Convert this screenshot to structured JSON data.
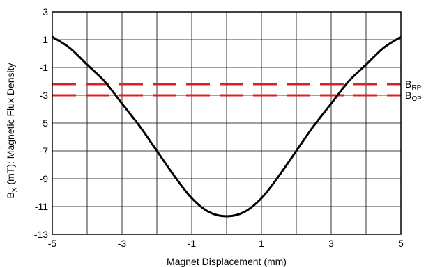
{
  "chart_data": {
    "type": "line",
    "title": "",
    "xlabel": "Magnet Displacement (mm)",
    "ylabel": "(mT): Magnetic Flux Density",
    "ylabel_symbol": "B",
    "ylabel_symbol_sub": "X",
    "xlim": [
      -5,
      5
    ],
    "ylim": [
      -13,
      3
    ],
    "x_ticks": [
      -5,
      -3,
      -1,
      1,
      3,
      5
    ],
    "y_ticks": [
      3,
      1,
      -1,
      -3,
      -5,
      -7,
      -9,
      -11,
      -13
    ],
    "x_grid": [
      -5,
      -4,
      -3,
      -2,
      -1,
      0,
      1,
      2,
      3,
      4,
      5
    ],
    "y_grid": [
      3,
      1,
      -1,
      -3,
      -5,
      -7,
      -9,
      -11,
      -13
    ],
    "grid": true,
    "series": [
      {
        "color": "#000000",
        "x": [
          -5.0,
          -4.5,
          -4.0,
          -3.5,
          -3.0,
          -2.5,
          -2.0,
          -1.5,
          -1.0,
          -0.5,
          0.0,
          0.5,
          1.0,
          1.5,
          2.0,
          2.5,
          3.0,
          3.5,
          4.0,
          4.5,
          5.0
        ],
        "y": [
          1.2,
          0.4,
          -0.8,
          -2.0,
          -3.6,
          -5.2,
          -7.0,
          -8.8,
          -10.4,
          -11.4,
          -11.7,
          -11.4,
          -10.4,
          -8.8,
          -7.0,
          -5.2,
          -3.6,
          -2.0,
          -0.8,
          0.4,
          1.2
        ]
      }
    ],
    "reference_lines": [
      {
        "value": -2.2,
        "label_main": "B",
        "label_sub": "RP",
        "color": "#e02020"
      },
      {
        "value": -3.0,
        "label_main": "B",
        "label_sub": "OP",
        "color": "#e02020"
      }
    ]
  }
}
